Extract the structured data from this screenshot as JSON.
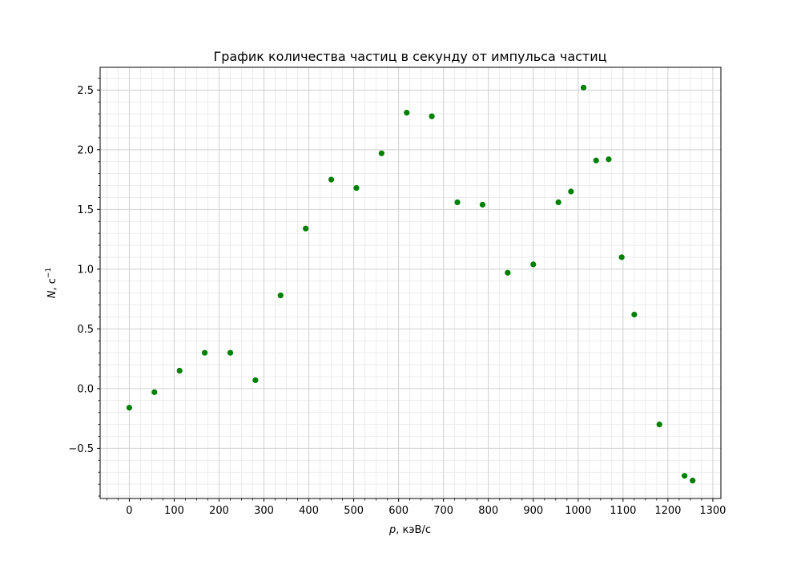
{
  "chart_data": {
    "type": "scatter",
    "title": "График количества частиц в секунду от импульса частиц",
    "xlabel_var": "p",
    "xlabel_unit": ", кэВ/с",
    "ylabel_var": "N",
    "ylabel_unit": ", с",
    "ylabel_sup": "−1",
    "xlim": [
      -65,
      1318
    ],
    "ylim": [
      -0.92,
      2.69
    ],
    "x_ticks": [
      0,
      100,
      200,
      300,
      400,
      500,
      600,
      700,
      800,
      900,
      1000,
      1100,
      1200,
      1300
    ],
    "x_tick_labels": [
      "0",
      "100",
      "200",
      "300",
      "400",
      "500",
      "600",
      "700",
      "800",
      "900",
      "1000",
      "1100",
      "1200",
      "1300"
    ],
    "y_ticks": [
      -0.5,
      0.0,
      0.5,
      1.0,
      1.5,
      2.0,
      2.5
    ],
    "y_tick_labels": [
      "−0.5",
      "0.0",
      "0.5",
      "1.0",
      "1.5",
      "2.0",
      "2.5"
    ],
    "grid": true,
    "marker_color": "#008000",
    "series": [
      {
        "x": [
          0,
          56,
          112,
          168,
          225,
          281,
          337,
          393,
          450,
          506,
          562,
          618,
          674,
          731,
          787,
          843,
          900,
          956,
          984,
          1012,
          1040,
          1068,
          1097,
          1125,
          1181,
          1237,
          1255
        ],
        "y": [
          -0.16,
          -0.03,
          0.15,
          0.3,
          0.3,
          0.07,
          0.78,
          1.34,
          1.75,
          1.68,
          1.97,
          2.31,
          2.28,
          1.56,
          1.54,
          0.97,
          1.04,
          1.56,
          1.65,
          2.52,
          1.91,
          1.92,
          1.1,
          0.62,
          -0.3,
          -0.73,
          -0.77
        ]
      }
    ]
  }
}
